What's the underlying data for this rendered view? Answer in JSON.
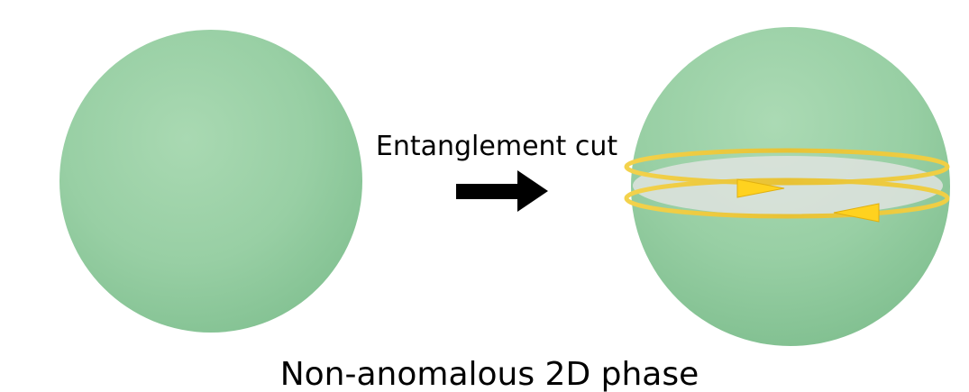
{
  "diagram": {
    "arrow_label": "Entanglement cut",
    "caption": "Non-anomalous 2D phase"
  },
  "colors": {
    "sphere_fill": "#96cfa3",
    "sphere_edge": "#7fbf90",
    "ring_gold": "#e8c63a",
    "arrow_yellow": "#ffd21f",
    "arrow_black": "#000000",
    "cut_plane": "#d8ddd8"
  }
}
